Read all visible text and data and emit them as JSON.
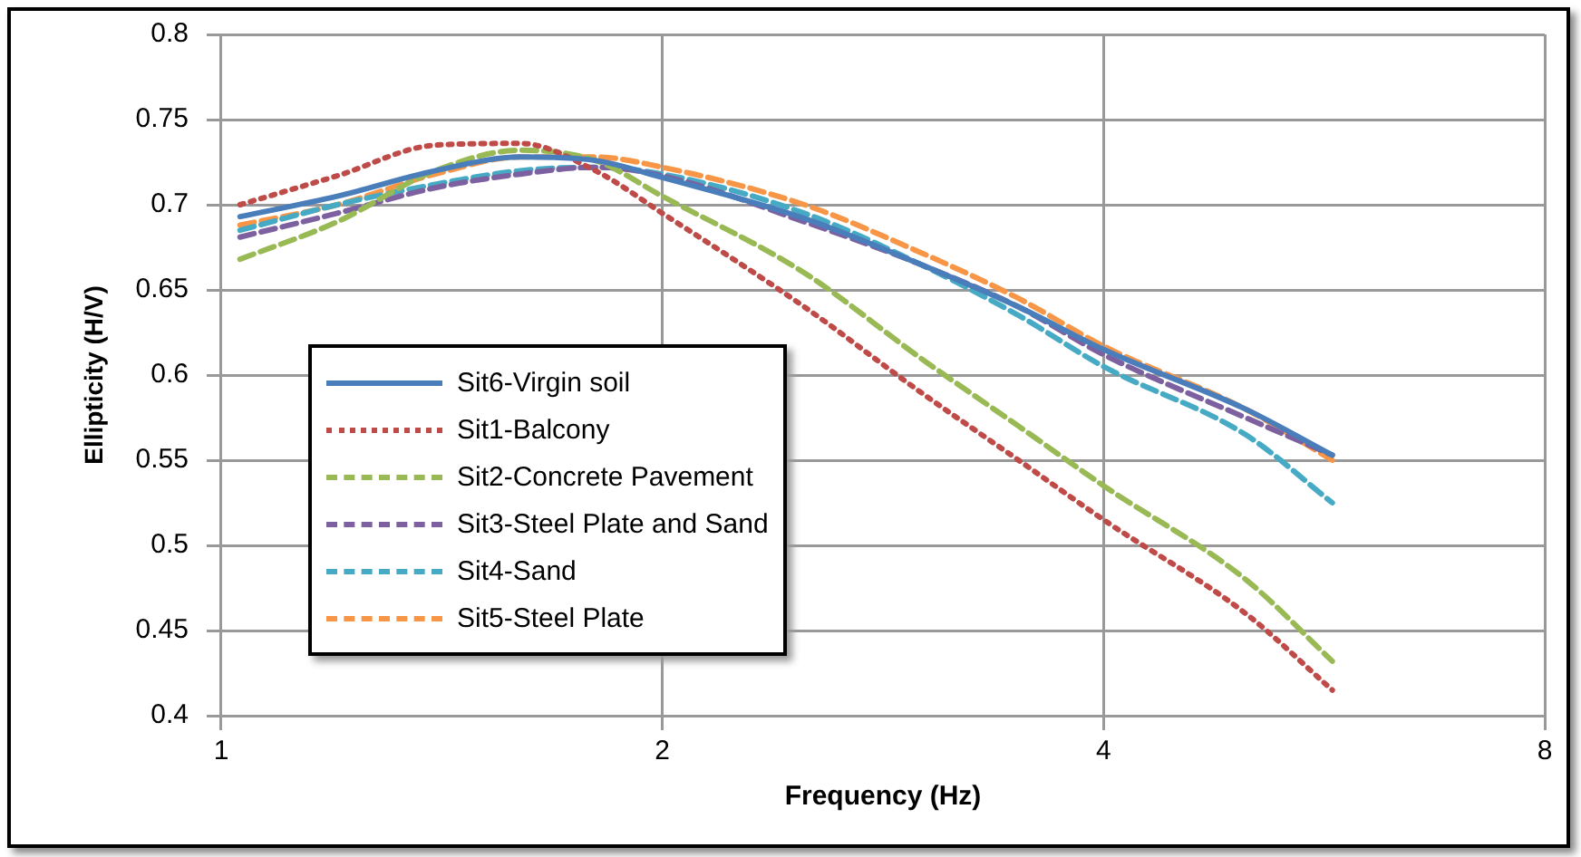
{
  "chart_data": {
    "type": "line",
    "xlabel": "Frequency (Hz)",
    "ylabel": "Ellipticity (H/V)",
    "x": [
      1.03,
      1.2,
      1.4,
      1.6,
      1.8,
      2,
      2.5,
      3,
      3.5,
      4,
      5,
      5.73
    ],
    "log": "x",
    "xlim": [
      1,
      8
    ],
    "xticks": [
      1,
      2,
      4,
      8
    ],
    "ylim": [
      0.4,
      0.8
    ],
    "yticks": [
      0.4,
      0.45,
      0.5,
      0.55,
      0.6,
      0.65,
      0.7,
      0.75,
      0.8
    ],
    "grid": true,
    "legend": "bottom left",
    "marker": "none",
    "series": [
      {
        "name": "Sit6-Virgin soil",
        "color": "#4a7ebb",
        "line_style": "solid",
        "values": [
          0.693,
          0.705,
          0.72,
          0.728,
          0.726,
          0.716,
          0.692,
          0.665,
          0.64,
          0.615,
          0.58,
          0.553
        ]
      },
      {
        "name": "Sit1-Balcony",
        "color": "#be4b48",
        "line_style": "dotted",
        "values": [
          0.7,
          0.717,
          0.735,
          0.736,
          0.72,
          0.695,
          0.64,
          0.59,
          0.55,
          0.515,
          0.46,
          0.415
        ]
      },
      {
        "name": "Sit2-Concrete Pavement",
        "color": "#98b954",
        "line_style": "dashed",
        "values": [
          0.668,
          0.69,
          0.72,
          0.732,
          0.726,
          0.705,
          0.66,
          0.61,
          0.57,
          0.535,
          0.48,
          0.432
        ]
      },
      {
        "name": "Sit3-Steel Plate and Sand",
        "color": "#7d60a0",
        "line_style": "dashed",
        "values": [
          0.681,
          0.695,
          0.71,
          0.718,
          0.722,
          0.717,
          0.69,
          0.665,
          0.64,
          0.612,
          0.575,
          0.553
        ]
      },
      {
        "name": "Sit4-Sand",
        "color": "#46aac5",
        "line_style": "dashed",
        "values": [
          0.685,
          0.7,
          0.712,
          0.72,
          0.722,
          0.718,
          0.695,
          0.665,
          0.635,
          0.605,
          0.565,
          0.525
        ]
      },
      {
        "name": "Sit5-Steel Plate",
        "color": "#f79646",
        "line_style": "dashed",
        "values": [
          0.688,
          0.7,
          0.718,
          0.728,
          0.728,
          0.722,
          0.7,
          0.672,
          0.645,
          0.617,
          0.58,
          0.55
        ]
      }
    ]
  }
}
